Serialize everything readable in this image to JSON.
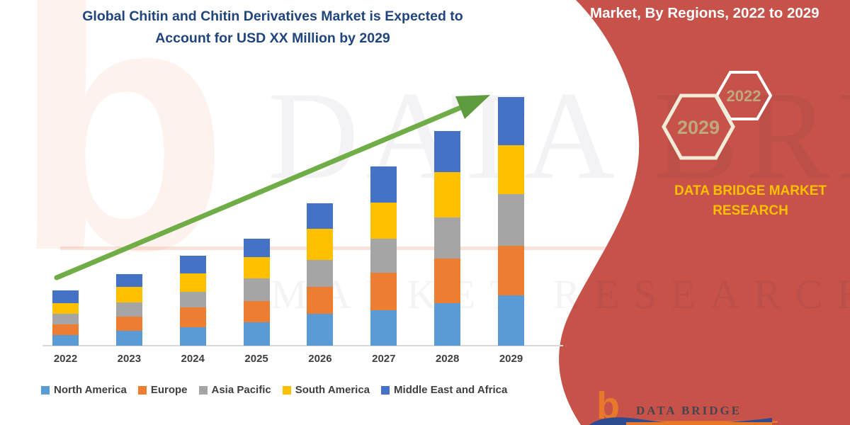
{
  "title": "Global Chitin and Chitin Derivatives Market is Expected to Account for USD XX Million by 2029",
  "panel": {
    "heading": "Market, By Regions, 2022 to 2029",
    "bg_color": "#C6524A",
    "hexagons": [
      {
        "label": "2029"
      },
      {
        "label": "2022"
      }
    ],
    "brand_text": "DATA BRIDGE MARKET RESEARCH",
    "brand_text_color": "#FFC000",
    "hex_label_color": "#BFA87C"
  },
  "watermark": {
    "corner_letter": "b",
    "line1": "DATA BRIDGE",
    "line2": "MARKET RESEARCH"
  },
  "logo": {
    "glyph": "b",
    "name": "DATA BRIDGE",
    "glyph_color": "#E8782A"
  },
  "chart_data": {
    "type": "bar",
    "stacked": true,
    "title": "Global Chitin and Chitin Derivatives Market is Expected to Account for USD XX Million by 2029",
    "xlabel": "",
    "ylabel": "",
    "y_axis_shown": false,
    "values_note": "actual USD values masked as XX in source; series values are estimated relative heights (px)",
    "legend_position": "bottom",
    "grid": false,
    "trend_arrow_color": "#70AD47",
    "categories": [
      "2022",
      "2023",
      "2024",
      "2025",
      "2026",
      "2027",
      "2028",
      "2029"
    ],
    "series": [
      {
        "name": "North America",
        "color": "#5B9BD5",
        "values": [
          15,
          21,
          26,
          33,
          45,
          50,
          60,
          71
        ]
      },
      {
        "name": "Europe",
        "color": "#ED7D31",
        "values": [
          15,
          20,
          28,
          30,
          38,
          53,
          63,
          70
        ]
      },
      {
        "name": "Asia Pacific",
        "color": "#A5A5A5",
        "values": [
          15,
          20,
          22,
          32,
          38,
          48,
          58,
          73
        ]
      },
      {
        "name": "South America",
        "color": "#FFC000",
        "values": [
          15,
          22,
          26,
          30,
          44,
          51,
          64,
          69
        ]
      },
      {
        "name": "Middle East and Africa",
        "color": "#4472C4",
        "values": [
          18,
          18,
          25,
          26,
          36,
          51,
          58,
          68
        ]
      }
    ],
    "totals_relative": [
      78,
      101,
      127,
      151,
      201,
      253,
      303,
      351
    ]
  }
}
